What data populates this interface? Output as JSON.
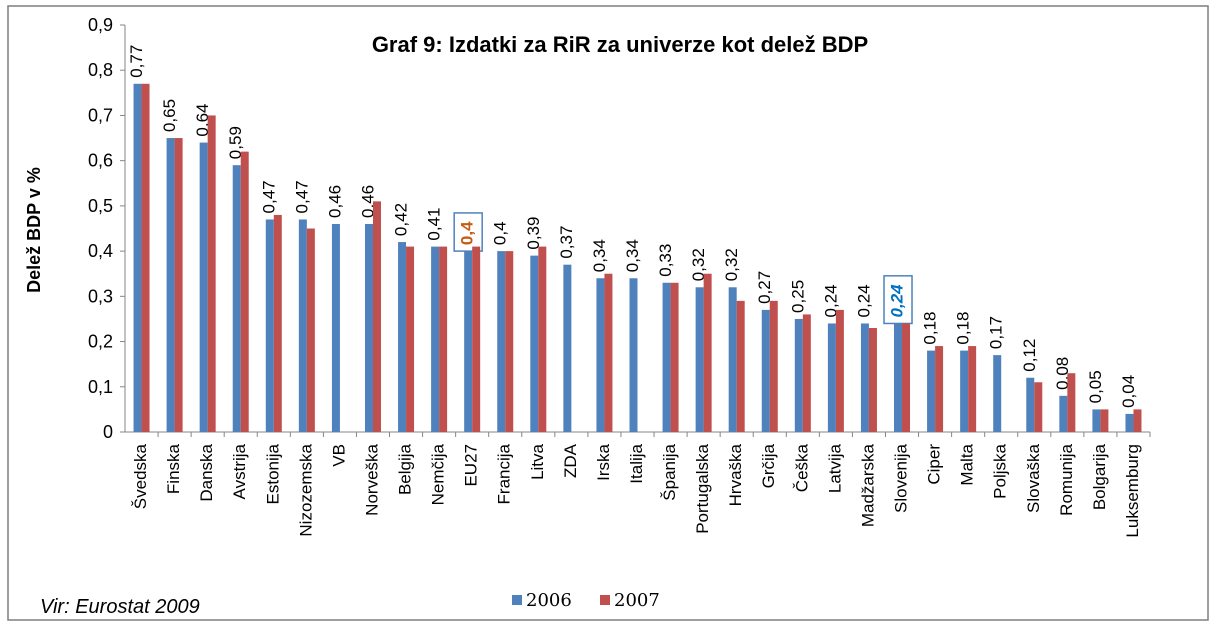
{
  "chart_data": {
    "type": "bar",
    "title": "Graf 9: Izdatki za RiR za univerze kot delež BDP",
    "y_label": "Delež BDP v %",
    "source": "Vir: Eurostat 2009",
    "categories": [
      "Švedska",
      "Finska",
      "Danska",
      "Avstrija",
      "Estonija",
      "Nizozemska",
      "VB",
      "Norveška",
      "Belgija",
      "Nemčija",
      "EU27",
      "Francija",
      "Litva",
      "ZDA",
      "Irska",
      "Italija",
      "Španija",
      "Portugalska",
      "Hrvaška",
      "Grčija",
      "Češka",
      "Latvija",
      "Madžarska",
      "Slovenija",
      "Ciper",
      "Malta",
      "Poljska",
      "Slovaška",
      "Romunija",
      "Bolgarija",
      "Luksemburg"
    ],
    "series": [
      {
        "name": "2006",
        "color": "#4f81bd",
        "values": [
          0.77,
          0.65,
          0.64,
          0.59,
          0.47,
          0.47,
          0.46,
          0.46,
          0.42,
          0.41,
          0.4,
          0.4,
          0.39,
          0.37,
          0.34,
          0.34,
          0.33,
          0.32,
          0.32,
          0.27,
          0.25,
          0.24,
          0.24,
          0.24,
          0.18,
          0.18,
          0.17,
          0.12,
          0.08,
          0.05,
          0.04
        ],
        "value_labels": [
          "0,77",
          "0,65",
          "0,64",
          "0,59",
          "0,47",
          "0,47",
          "0,46",
          "0,46",
          "0,42",
          "0,41",
          "0,4",
          "0,4",
          "0,39",
          "0,37",
          "0,34",
          "0,34",
          "0,33",
          "0,32",
          "0,32",
          "0,27",
          "0,25",
          "0,24",
          "0,24",
          "0,24",
          "0,18",
          "0,18",
          "0,17",
          "0,12",
          "0,08",
          "0,05",
          "0,04"
        ]
      },
      {
        "name": "2007",
        "color": "#c0504d",
        "values": [
          0.77,
          0.65,
          0.7,
          0.62,
          0.48,
          0.45,
          null,
          0.51,
          0.41,
          0.41,
          0.41,
          0.4,
          0.41,
          null,
          0.35,
          null,
          0.33,
          0.35,
          0.29,
          0.29,
          0.26,
          0.27,
          0.23,
          0.24,
          0.19,
          0.19,
          null,
          0.11,
          0.13,
          0.05,
          0.05
        ]
      }
    ],
    "highlights": [
      {
        "index": 10,
        "color": "#c55a11",
        "italic": false
      },
      {
        "index": 23,
        "color": "#0070c0",
        "italic": true
      }
    ],
    "ylim": [
      0,
      0.9
    ],
    "yticks": [
      0,
      {
        "value": 0.1,
        "label": "0,1"
      },
      {
        "value": 0.2,
        "label": "0,2"
      },
      {
        "value": 0.3,
        "label": "0,3"
      },
      {
        "value": 0.4,
        "label": "0,4"
      },
      {
        "value": 0.5,
        "label": "0,5"
      },
      {
        "value": 0.6,
        "label": "0,6"
      },
      {
        "value": 0.7,
        "label": "0,7"
      },
      {
        "value": 0.8,
        "label": "0,8"
      },
      {
        "value": 0.9,
        "label": "0,9"
      }
    ],
    "legend": "bottom"
  }
}
